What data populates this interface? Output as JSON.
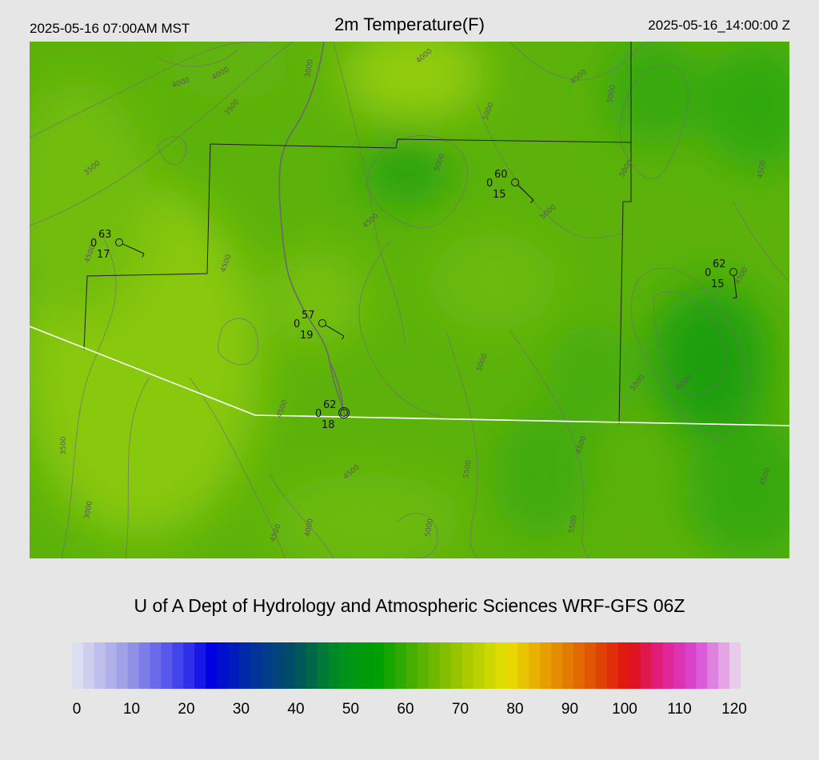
{
  "header": {
    "local_time": "2025-05-16 07:00AM MST",
    "title": "2m Temperature(F)",
    "utc_time": "2025-05-16_14:00:00 Z"
  },
  "credit": "U of A Dept of Hydrology and Atmospheric Sciences WRF-GFS 06Z",
  "colorbar": {
    "min": 0,
    "max": 120,
    "tick_labels": [
      "0",
      "10",
      "20",
      "30",
      "40",
      "50",
      "60",
      "70",
      "80",
      "90",
      "100",
      "110",
      "120"
    ],
    "stops": [
      {
        "value": 0,
        "color": "#e4e4f2"
      },
      {
        "value": 10,
        "color": "#9a9ae6"
      },
      {
        "value": 20,
        "color": "#3a3aee"
      },
      {
        "value": 25,
        "color": "#0000e0"
      },
      {
        "value": 32,
        "color": "#0030a0"
      },
      {
        "value": 40,
        "color": "#005060"
      },
      {
        "value": 48,
        "color": "#009020"
      },
      {
        "value": 55,
        "color": "#00a000"
      },
      {
        "value": 62,
        "color": "#50b000"
      },
      {
        "value": 70,
        "color": "#a0c800"
      },
      {
        "value": 78,
        "color": "#e8e000"
      },
      {
        "value": 84,
        "color": "#e8a800"
      },
      {
        "value": 92,
        "color": "#e06000"
      },
      {
        "value": 100,
        "color": "#e01010"
      },
      {
        "value": 106,
        "color": "#e0208a"
      },
      {
        "value": 112,
        "color": "#d848d8"
      },
      {
        "value": 120,
        "color": "#ecdcec"
      }
    ]
  },
  "contour_labels": [
    {
      "text": "4000"
    },
    {
      "text": "4000"
    },
    {
      "text": "3000"
    },
    {
      "text": "4000"
    },
    {
      "text": "4500"
    },
    {
      "text": "5000"
    },
    {
      "text": "3500"
    },
    {
      "text": "3500"
    },
    {
      "text": "5000"
    },
    {
      "text": "5000"
    },
    {
      "text": "5000"
    },
    {
      "text": "4500"
    },
    {
      "text": "5000"
    },
    {
      "text": "4500"
    },
    {
      "text": "4500"
    },
    {
      "text": "4500"
    },
    {
      "text": "4500"
    },
    {
      "text": "5000"
    },
    {
      "text": "5500"
    },
    {
      "text": "6000"
    },
    {
      "text": "4500"
    },
    {
      "text": "3500"
    },
    {
      "text": "4500"
    },
    {
      "text": "5500"
    },
    {
      "text": "4500"
    },
    {
      "text": "3000"
    },
    {
      "text": "4500"
    },
    {
      "text": "4000"
    },
    {
      "text": "5000"
    },
    {
      "text": "5500"
    },
    {
      "text": "4500"
    }
  ],
  "stations": [
    {
      "temp": "63",
      "cloud": "0",
      "dew": "17"
    },
    {
      "temp": "60",
      "cloud": "0",
      "dew": "15"
    },
    {
      "temp": "62",
      "cloud": "0",
      "dew": "15"
    },
    {
      "temp": "57",
      "cloud": "0",
      "dew": "19"
    },
    {
      "temp": "62",
      "cloud": "0",
      "dew": "18"
    }
  ]
}
